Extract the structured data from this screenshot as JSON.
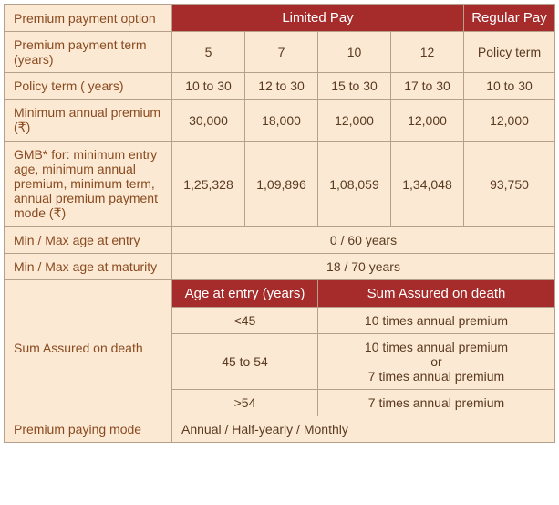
{
  "colors": {
    "header_bg": "#a62b2b",
    "header_fg": "#ffffff",
    "body_bg": "#fbe9d4",
    "label_fg": "#8a4a1f",
    "value_fg": "#5a3a20",
    "border": "#b7a08a"
  },
  "headers": {
    "option": "Premium payment option",
    "limited": "Limited Pay",
    "regular": "Regular Pay"
  },
  "rows": {
    "ppt": {
      "label": "Premium payment term (years)",
      "v": [
        "5",
        "7",
        "10",
        "12",
        "Policy term"
      ]
    },
    "policy_term": {
      "label": "Policy term ( years)",
      "v": [
        "10 to 30",
        "12 to 30",
        "15 to 30",
        "17 to 30",
        "10 to 30"
      ]
    },
    "min_premium": {
      "label": "Minimum annual premium (₹)",
      "v": [
        "30,000",
        "18,000",
        "12,000",
        "12,000",
        "12,000"
      ]
    },
    "gmb": {
      "label": "GMB* for: minimum entry age, minimum annual premium, minimum term, annual premium payment mode (₹)",
      "v": [
        "1,25,328",
        "1,09,896",
        "1,08,059",
        "1,34,048",
        "93,750"
      ]
    },
    "age_entry": {
      "label": "Min / Max age at entry",
      "value": "0 / 60 years"
    },
    "age_maturity": {
      "label": "Min / Max age at maturity",
      "value": "18 / 70 years"
    },
    "sa_death": {
      "label": "Sum Assured on death",
      "sub_headers": {
        "age": "Age at entry (years)",
        "sa": "Sum Assured on death"
      },
      "rows": [
        {
          "age": "<45",
          "sa": "10 times annual premium"
        },
        {
          "age": "45 to 54",
          "sa": "10 times annual premium\nor\n7 times annual premium"
        },
        {
          "age": ">54",
          "sa": "7 times annual premium"
        }
      ]
    },
    "mode": {
      "label": "Premium paying mode",
      "value": "Annual / Half-yearly / Monthly"
    }
  }
}
